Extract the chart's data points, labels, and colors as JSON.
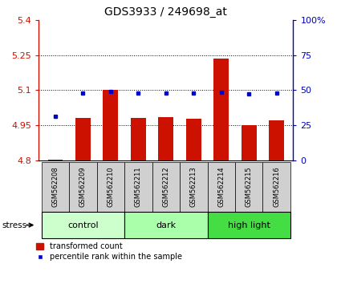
{
  "title": "GDS3933 / 249698_at",
  "samples": [
    "GSM562208",
    "GSM562209",
    "GSM562210",
    "GSM562211",
    "GSM562212",
    "GSM562213",
    "GSM562214",
    "GSM562215",
    "GSM562216"
  ],
  "red_values": [
    4.802,
    4.982,
    5.101,
    4.982,
    4.985,
    4.978,
    5.235,
    4.951,
    4.97
  ],
  "blue_values": [
    4.988,
    5.088,
    5.093,
    5.088,
    5.089,
    5.087,
    5.09,
    5.083,
    5.089
  ],
  "ymin": 4.8,
  "ymax": 5.4,
  "yticks": [
    4.8,
    4.95,
    5.1,
    5.25,
    5.4
  ],
  "ytick_labels": [
    "4.8",
    "4.95",
    "5.1",
    "5.25",
    "5.4"
  ],
  "right_yticks": [
    0,
    25,
    50,
    75,
    100
  ],
  "right_ytick_labels": [
    "0",
    "25",
    "50",
    "75",
    "100%"
  ],
  "groups": [
    {
      "label": "control",
      "indices": [
        0,
        1,
        2
      ],
      "color": "#ccffcc"
    },
    {
      "label": "dark",
      "indices": [
        3,
        4,
        5
      ],
      "color": "#aaffaa"
    },
    {
      "label": "high light",
      "indices": [
        6,
        7,
        8
      ],
      "color": "#44dd44"
    }
  ],
  "stress_label": "stress",
  "bar_color": "#cc1100",
  "blue_color": "#0000cc",
  "left_axis_color": "#cc1100",
  "right_axis_color": "#0000bb",
  "sample_bg": "#d0d0d0",
  "bar_width": 0.55
}
